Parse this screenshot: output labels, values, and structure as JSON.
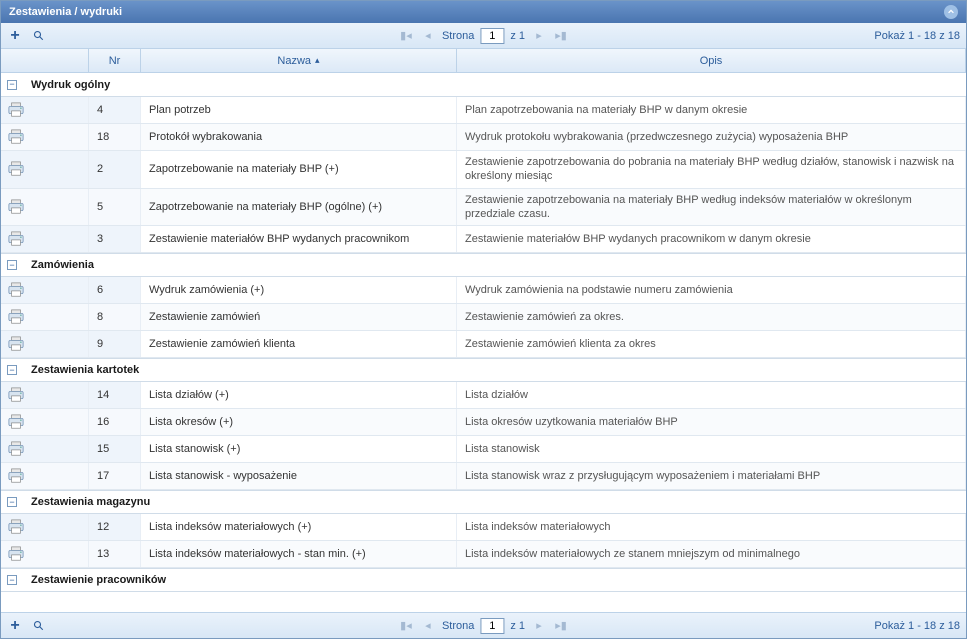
{
  "window": {
    "title": "Zestawienia / wydruki"
  },
  "toolbar": {
    "page_label": "Strona",
    "page_value": "1",
    "page_of": "z 1",
    "range_label": "Pokaż 1 - 18 z 18"
  },
  "columns": {
    "nr": "Nr",
    "name": "Nazwa",
    "desc": "Opis"
  },
  "groups": [
    {
      "label": "Wydruk ogólny",
      "rows": [
        {
          "nr": "4",
          "name": "Plan potrzeb",
          "desc": "Plan zapotrzebowania na materiały BHP w danym okresie"
        },
        {
          "nr": "18",
          "name": "Protokół wybrakowania",
          "desc": "Wydruk protokołu wybrakowania (przedwczesnego zużycia) wyposażenia BHP"
        },
        {
          "nr": "2",
          "name": "Zapotrzebowanie na materiały BHP (+)",
          "desc": "Zestawienie zapotrzebowania do pobrania na materiały BHP według działów, stanowisk i nazwisk na określony miesiąc"
        },
        {
          "nr": "5",
          "name": "Zapotrzebowanie na materiały BHP (ogólne) (+)",
          "desc": "Zestawienie zapotrzebowania na materiały BHP według indeksów materiałów w określonym przedziale czasu."
        },
        {
          "nr": "3",
          "name": "Zestawienie materiałów BHP wydanych pracownikom",
          "desc": "Zestawienie materiałów BHP wydanych pracownikom w danym okresie"
        }
      ]
    },
    {
      "label": "Zamówienia",
      "rows": [
        {
          "nr": "6",
          "name": "Wydruk zamówienia (+)",
          "desc": "Wydruk zamówienia na podstawie numeru zamówienia"
        },
        {
          "nr": "8",
          "name": "Zestawienie zamówień",
          "desc": "Zestawienie zamówień za okres."
        },
        {
          "nr": "9",
          "name": "Zestawienie zamówień klienta",
          "desc": "Zestawienie zamówień klienta za okres"
        }
      ]
    },
    {
      "label": "Zestawienia kartotek",
      "rows": [
        {
          "nr": "14",
          "name": "Lista działów (+)",
          "desc": "Lista działów"
        },
        {
          "nr": "16",
          "name": "Lista okresów (+)",
          "desc": "Lista okresów uzytkowania materiałów BHP"
        },
        {
          "nr": "15",
          "name": "Lista stanowisk (+)",
          "desc": "Lista stanowisk"
        },
        {
          "nr": "17",
          "name": "Lista stanowisk - wyposażenie",
          "desc": "Lista stanowisk wraz z przysługującym wyposażeniem i materiałami BHP"
        }
      ]
    },
    {
      "label": "Zestawienia magazynu",
      "rows": [
        {
          "nr": "12",
          "name": "Lista indeksów materiałowych (+)",
          "desc": "Lista indeksów materiałowych"
        },
        {
          "nr": "13",
          "name": "Lista indeksów materiałowych - stan min. (+)",
          "desc": "Lista indeksów materiałowych ze stanem mniejszym od minimalnego"
        }
      ]
    },
    {
      "label": "Zestawienie pracowników",
      "rows": []
    }
  ],
  "colors": {
    "titlebar_from": "#6a93c9",
    "titlebar_to": "#4a75b0",
    "toolbar_from": "#eaf2fb",
    "toolbar_to": "#d8e7f6",
    "header_from": "#f0f6fc",
    "header_to": "#dce9f7",
    "border": "#bcd2e8",
    "link": "#2c5d9b",
    "cell_alt": "#eef4fb"
  }
}
